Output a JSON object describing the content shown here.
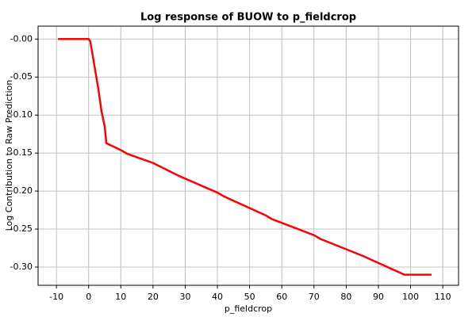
{
  "chart_data": {
    "type": "line",
    "title": "Log response of BUOW to p_fieldcrop",
    "x_label": "p_fieldcrop",
    "y_label": "Log Contribution to Raw Prediction",
    "x": [
      -9.5,
      0,
      0.5,
      1,
      2,
      3,
      4,
      5,
      5.5,
      10,
      12,
      20,
      28,
      40,
      42,
      55,
      57,
      70,
      72,
      85,
      97,
      98,
      106.5
    ],
    "series": [
      {
        "color": "#ff0000",
        "values": [
          0,
          0,
          -0.003,
          -0.015,
          -0.04,
          -0.065,
          -0.095,
          -0.115,
          -0.137,
          -0.146,
          -0.151,
          -0.163,
          -0.18,
          -0.202,
          -0.207,
          -0.232,
          -0.237,
          -0.258,
          -0.263,
          -0.285,
          -0.308,
          -0.31,
          -0.31
        ]
      }
    ],
    "xlim": [
      -15.7,
      114.9
    ],
    "ylim": [
      -0.324,
      0.017
    ],
    "xticks": [
      -10,
      0,
      10,
      20,
      30,
      40,
      50,
      60,
      70,
      80,
      90,
      100,
      110
    ],
    "yticks": [
      {
        "value": 0,
        "label": "-0.00"
      },
      -0.05,
      {
        "value": -0.1,
        "label": "-0.10"
      },
      -0.15,
      {
        "value": -0.2,
        "label": "-0.20"
      },
      -0.25,
      {
        "value": -0.3,
        "label": "-0.30"
      }
    ],
    "grid": true
  }
}
